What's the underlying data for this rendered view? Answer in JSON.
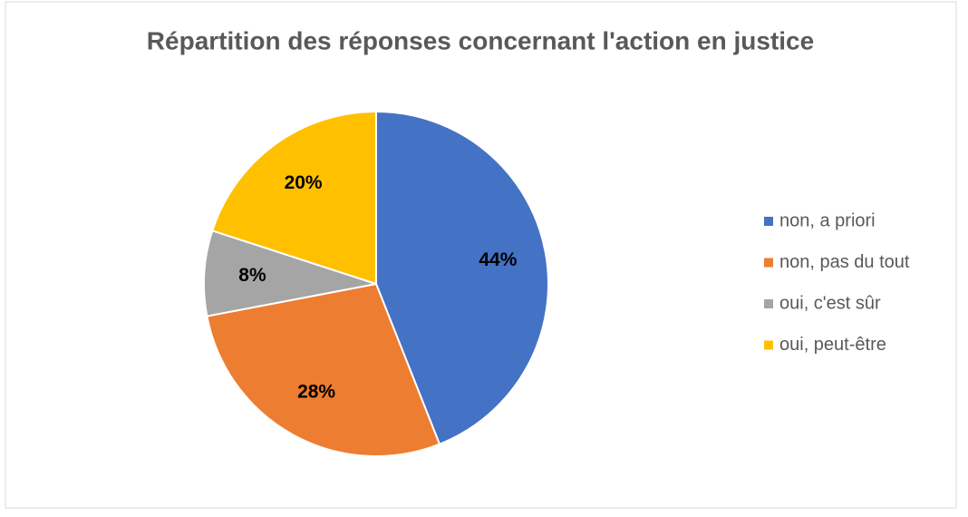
{
  "chart_data": {
    "type": "pie",
    "title": "Répartition des réponses concernant l'action en justice",
    "categories": [
      "non, a priori",
      "non, pas du tout",
      "oui, c'est sûr",
      "oui, peut-être"
    ],
    "values": [
      44,
      28,
      8,
      20
    ],
    "value_labels": [
      "44%",
      "28%",
      "8%",
      "20%"
    ],
    "colors": [
      "#4472c4",
      "#ed7d31",
      "#a5a5a5",
      "#ffc000"
    ],
    "legend": "right"
  }
}
